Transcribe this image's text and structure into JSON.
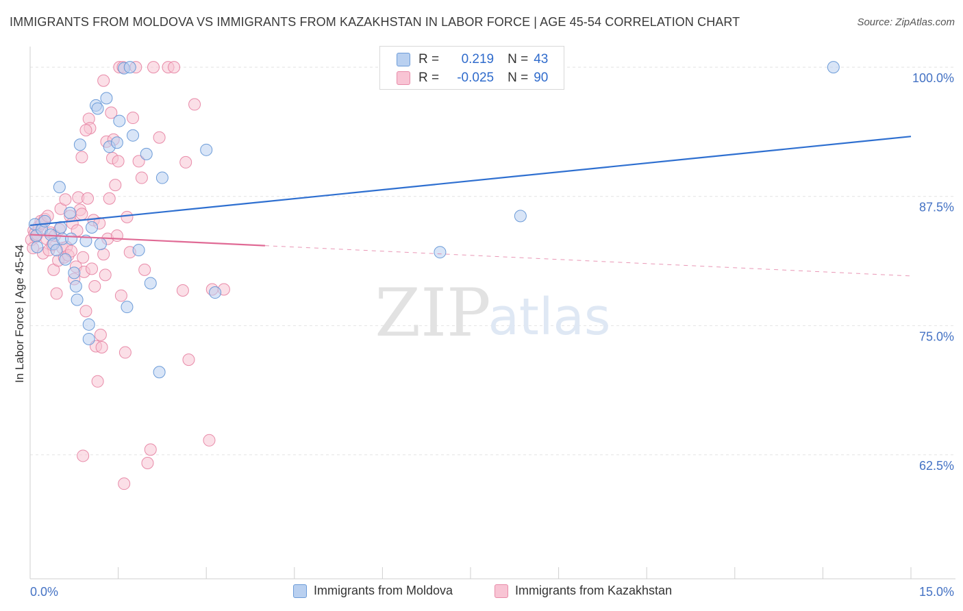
{
  "title": "IMMIGRANTS FROM MOLDOVA VS IMMIGRANTS FROM KAZAKHSTAN IN LABOR FORCE | AGE 45-54 CORRELATION CHART",
  "source": "Source: ZipAtlas.com",
  "watermark": {
    "part1": "ZIP",
    "part2": "atlas"
  },
  "legend": {
    "r_label": "R =",
    "n_label": "N =",
    "series": [
      {
        "r": "0.219",
        "n": "43"
      },
      {
        "r": "-0.025",
        "n": "90"
      }
    ]
  },
  "colors": {
    "blue_fill": "#b9d0f0",
    "blue_stroke": "#6b9bd8",
    "blue_line": "#2e6fd0",
    "pink_fill": "#f8c4d4",
    "pink_stroke": "#e88aa8",
    "pink_line": "#e06a95",
    "axis_text": "#4472c4",
    "grid": "#e4e4e4"
  },
  "chart_data": {
    "type": "scatter",
    "title": "IMMIGRANTS FROM MOLDOVA VS IMMIGRANTS FROM KAZAKHSTAN IN LABOR FORCE | AGE 45-54 CORRELATION CHART",
    "xlabel": "",
    "ylabel": "In Labor Force | Age 45-54",
    "x_tick_labels": [
      "0.0%",
      "15.0%"
    ],
    "y_tick_labels": [
      "100.0%",
      "87.5%",
      "75.0%",
      "62.5%"
    ],
    "y_tick_values": [
      100,
      87.5,
      75,
      62.5
    ],
    "xlim": [
      0,
      15
    ],
    "ylim": [
      50.5,
      101.2
    ],
    "series": [
      {
        "name": "Immigrants from Moldova",
        "color": "blue",
        "trend": {
          "x0": 0.0,
          "y0": 84.7,
          "x1": 15.0,
          "y1": 93.3,
          "dashed_from": null
        },
        "points": [
          [
            0.08,
            84.8
          ],
          [
            0.1,
            83.7
          ],
          [
            0.12,
            82.6
          ],
          [
            0.2,
            84.3
          ],
          [
            0.25,
            85.1
          ],
          [
            0.35,
            83.8
          ],
          [
            0.4,
            82.9
          ],
          [
            0.45,
            82.3
          ],
          [
            0.5,
            88.4
          ],
          [
            0.52,
            84.5
          ],
          [
            0.55,
            83.4
          ],
          [
            0.6,
            81.4
          ],
          [
            0.68,
            85.9
          ],
          [
            0.7,
            83.4
          ],
          [
            0.75,
            80.1
          ],
          [
            0.78,
            78.8
          ],
          [
            0.8,
            77.5
          ],
          [
            0.85,
            92.5
          ],
          [
            0.95,
            83.2
          ],
          [
            1.0,
            75.1
          ],
          [
            1.0,
            73.7
          ],
          [
            1.05,
            84.5
          ],
          [
            1.12,
            96.3
          ],
          [
            1.15,
            96.0
          ],
          [
            1.2,
            82.9
          ],
          [
            1.3,
            97.0
          ],
          [
            1.35,
            92.3
          ],
          [
            1.48,
            92.7
          ],
          [
            1.52,
            94.8
          ],
          [
            1.6,
            99.9
          ],
          [
            1.7,
            100.0
          ],
          [
            1.65,
            76.8
          ],
          [
            1.75,
            93.4
          ],
          [
            1.85,
            82.3
          ],
          [
            1.98,
            91.6
          ],
          [
            2.05,
            79.1
          ],
          [
            2.25,
            89.3
          ],
          [
            2.2,
            70.5
          ],
          [
            3.15,
            78.2
          ],
          [
            3.0,
            92.0
          ],
          [
            6.98,
            82.1
          ],
          [
            8.35,
            85.6
          ],
          [
            13.68,
            100.0
          ]
        ]
      },
      {
        "name": "Immigrants from Kazakhstan",
        "color": "pink",
        "trend": {
          "x0": 0.0,
          "y0": 83.8,
          "x1": 15.0,
          "y1": 79.8,
          "dashed_from": 4.0
        },
        "points": [
          [
            0.02,
            83.3
          ],
          [
            0.05,
            82.5
          ],
          [
            0.06,
            84.2
          ],
          [
            0.08,
            83.9
          ],
          [
            0.1,
            83.6
          ],
          [
            0.12,
            83.8
          ],
          [
            0.15,
            84.6
          ],
          [
            0.18,
            85.1
          ],
          [
            0.2,
            84.9
          ],
          [
            0.22,
            82.0
          ],
          [
            0.25,
            85.3
          ],
          [
            0.28,
            83.4
          ],
          [
            0.3,
            85.6
          ],
          [
            0.32,
            82.3
          ],
          [
            0.35,
            84.0
          ],
          [
            0.38,
            82.8
          ],
          [
            0.4,
            80.4
          ],
          [
            0.42,
            83.7
          ],
          [
            0.45,
            78.1
          ],
          [
            0.48,
            81.3
          ],
          [
            0.5,
            84.3
          ],
          [
            0.52,
            86.3
          ],
          [
            0.55,
            82.5
          ],
          [
            0.58,
            81.6
          ],
          [
            0.6,
            87.2
          ],
          [
            0.62,
            82.6
          ],
          [
            0.65,
            81.8
          ],
          [
            0.68,
            85.6
          ],
          [
            0.7,
            82.2
          ],
          [
            0.72,
            84.9
          ],
          [
            0.75,
            79.5
          ],
          [
            0.78,
            80.7
          ],
          [
            0.8,
            84.2
          ],
          [
            0.82,
            87.4
          ],
          [
            0.85,
            86.2
          ],
          [
            0.88,
            85.8
          ],
          [
            0.9,
            81.6
          ],
          [
            0.92,
            80.2
          ],
          [
            0.95,
            76.4
          ],
          [
            0.98,
            87.3
          ],
          [
            1.0,
            95.0
          ],
          [
            1.02,
            94.1
          ],
          [
            1.05,
            80.5
          ],
          [
            1.08,
            85.2
          ],
          [
            1.1,
            78.8
          ],
          [
            1.12,
            73.0
          ],
          [
            1.15,
            69.6
          ],
          [
            1.18,
            84.9
          ],
          [
            1.2,
            74.1
          ],
          [
            1.22,
            72.9
          ],
          [
            1.25,
            81.9
          ],
          [
            1.28,
            79.9
          ],
          [
            1.3,
            92.8
          ],
          [
            1.32,
            83.4
          ],
          [
            1.35,
            87.3
          ],
          [
            1.38,
            95.6
          ],
          [
            1.4,
            91.2
          ],
          [
            1.42,
            93.0
          ],
          [
            1.45,
            88.6
          ],
          [
            1.48,
            83.7
          ],
          [
            1.5,
            90.9
          ],
          [
            1.52,
            100.0
          ],
          [
            1.55,
            77.9
          ],
          [
            1.58,
            100.0
          ],
          [
            1.6,
            59.7
          ],
          [
            1.62,
            72.4
          ],
          [
            1.65,
            85.5
          ],
          [
            1.7,
            82.1
          ],
          [
            1.75,
            95.1
          ],
          [
            1.8,
            100.0
          ],
          [
            1.85,
            90.9
          ],
          [
            1.9,
            89.3
          ],
          [
            1.95,
            80.4
          ],
          [
            2.0,
            61.7
          ],
          [
            2.05,
            63.0
          ],
          [
            2.1,
            100.0
          ],
          [
            2.2,
            93.2
          ],
          [
            2.35,
            100.0
          ],
          [
            2.45,
            100.0
          ],
          [
            2.6,
            78.4
          ],
          [
            2.65,
            90.8
          ],
          [
            2.7,
            71.7
          ],
          [
            2.8,
            96.4
          ],
          [
            3.05,
            63.9
          ],
          [
            3.1,
            78.5
          ],
          [
            3.3,
            78.5
          ],
          [
            0.9,
            62.4
          ],
          [
            1.25,
            98.7
          ],
          [
            0.95,
            93.9
          ],
          [
            0.88,
            91.3
          ]
        ]
      }
    ]
  },
  "bottom_legend": [
    "Immigrants from Moldova",
    "Immigrants from Kazakhstan"
  ]
}
